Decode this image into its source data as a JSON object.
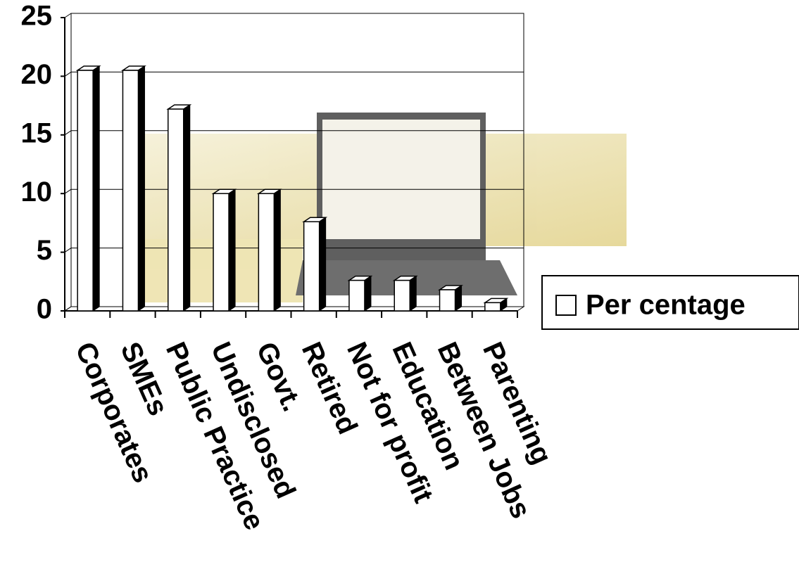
{
  "chart_data": {
    "type": "bar",
    "categories": [
      "Corporates",
      "SMEs",
      "Public Practice",
      "Undisclosed",
      "Govt.",
      "Retired",
      "Not for profit",
      "Education",
      "Between Jobs",
      "Parenting"
    ],
    "series": [
      {
        "name": "Per centage",
        "color": "#ffffff",
        "values": [
          20.5,
          20.5,
          17.2,
          10,
          10,
          7.6,
          2.6,
          2.6,
          1.8,
          0.7
        ]
      }
    ],
    "ylim": [
      0,
      25
    ],
    "yticks": [
      0,
      5,
      10,
      15,
      20,
      25
    ],
    "grid": true,
    "legend": "right"
  }
}
